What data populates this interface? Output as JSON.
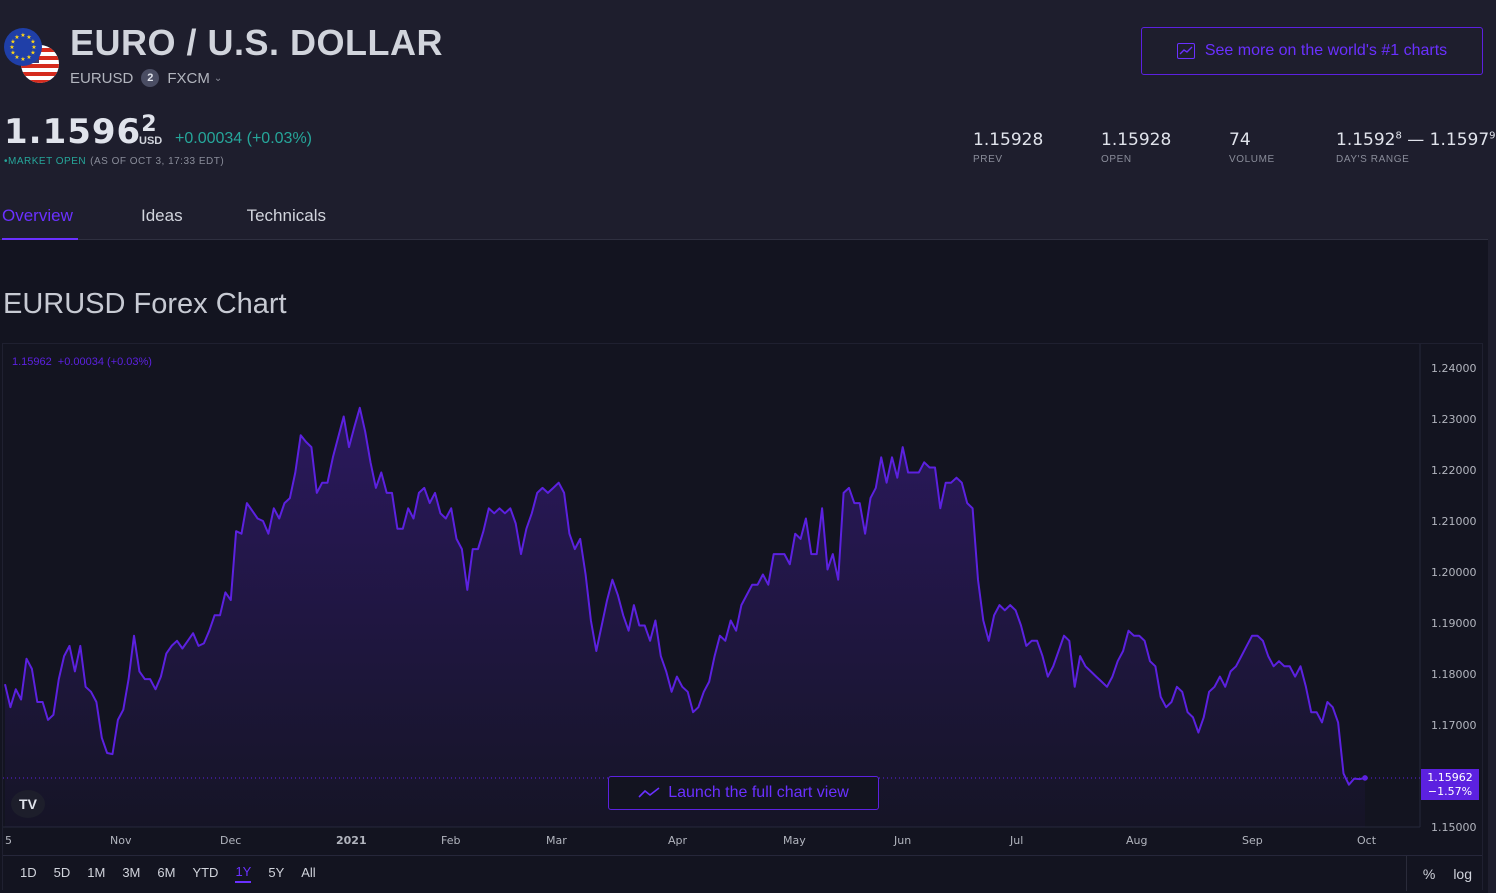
{
  "header": {
    "title": "EURO / U.S. DOLLAR",
    "symbol": "EURUSD",
    "provider_badge": "2",
    "provider": "FXCM",
    "cta_label": "See more on the world's #1 charts",
    "icons": [
      "eu-flag-icon",
      "us-flag-icon",
      "chevron-down-icon",
      "chart-icon"
    ]
  },
  "quote": {
    "price_main": "1.1596",
    "price_sup": "2",
    "currency": "USD",
    "change": "+0.00034 (+0.03%)",
    "status": "MARKET OPEN",
    "as_of": "(AS OF OCT 3, 17:33 EDT)"
  },
  "stats": [
    {
      "value": "1.15928",
      "label": "PREV"
    },
    {
      "value": "1.15928",
      "label": "OPEN"
    },
    {
      "value": "74",
      "label": "VOLUME"
    },
    {
      "value_low": "1.1592",
      "low_sup": "8",
      "sep": " — ",
      "value_high": "1.1597",
      "high_sup": "9",
      "label": "DAY'S RANGE"
    }
  ],
  "tabs": [
    {
      "label": "Overview",
      "active": true
    },
    {
      "label": "Ideas",
      "active": false
    },
    {
      "label": "Technicals",
      "active": false
    }
  ],
  "chart_section": {
    "heading": "EURUSD Forex Chart",
    "legend_price": "1.15962",
    "legend_change": "+0.00034 (+0.03%)",
    "launch_label": "Launch the full chart view",
    "tv_logo": "TV",
    "last_tag_price": "1.15962",
    "last_tag_change": "−1.57%",
    "accent": "#5c21e0"
  },
  "ranges": [
    {
      "label": "1D",
      "active": false
    },
    {
      "label": "5D",
      "active": false
    },
    {
      "label": "1M",
      "active": false
    },
    {
      "label": "3M",
      "active": false
    },
    {
      "label": "6M",
      "active": false
    },
    {
      "label": "YTD",
      "active": false
    },
    {
      "label": "1Y",
      "active": true
    },
    {
      "label": "5Y",
      "active": false
    },
    {
      "label": "All",
      "active": false
    }
  ],
  "scale_toggles": {
    "percent": "%",
    "log": "log"
  },
  "chart_data": {
    "type": "area",
    "ylim": [
      1.15,
      1.245
    ],
    "y_ticks": [
      1.24,
      1.23,
      1.22,
      1.21,
      1.2,
      1.19,
      1.18,
      1.17,
      1.16,
      1.15
    ],
    "y_tick_labels": [
      "1.24000",
      "1.23000",
      "1.22000",
      "1.21000",
      "1.20000",
      "1.19000",
      "1.18000",
      "1.17000",
      "",
      "1.15000"
    ],
    "x_tick_labels": [
      "5",
      "Nov",
      "Dec",
      "2021",
      "Feb",
      "Mar",
      "Apr",
      "May",
      "Jun",
      "Jul",
      "Aug",
      "Sep",
      "Oct"
    ],
    "x_tick_bold": [
      "2021"
    ],
    "values": [
      1.178,
      1.1735,
      1.177,
      1.175,
      1.183,
      1.181,
      1.1745,
      1.1745,
      1.171,
      1.172,
      1.179,
      1.1835,
      1.1855,
      1.1805,
      1.1855,
      1.1775,
      1.1765,
      1.1745,
      1.1675,
      1.1645,
      1.1643,
      1.171,
      1.173,
      1.179,
      1.1875,
      1.1805,
      1.179,
      1.179,
      1.177,
      1.1795,
      1.184,
      1.1855,
      1.1865,
      1.185,
      1.1865,
      1.188,
      1.1855,
      1.186,
      1.1885,
      1.1915,
      1.1915,
      1.196,
      1.1945,
      1.208,
      1.2075,
      1.2135,
      1.212,
      1.2105,
      1.21,
      1.2075,
      1.2125,
      1.2105,
      1.2135,
      1.2145,
      1.2195,
      1.2268,
      1.2255,
      1.2245,
      1.2155,
      1.2175,
      1.2175,
      1.2225,
      1.2265,
      1.2305,
      1.2245,
      1.2285,
      1.2322,
      1.2275,
      1.2215,
      1.2165,
      1.2195,
      1.2155,
      1.2155,
      1.2085,
      1.2085,
      1.2125,
      1.2105,
      1.2155,
      1.2165,
      1.2135,
      1.2155,
      1.2115,
      1.2105,
      1.2125,
      1.2065,
      1.2045,
      1.1965,
      1.2045,
      1.2045,
      1.208,
      1.2125,
      1.2115,
      1.2125,
      1.2115,
      1.2125,
      1.2095,
      1.2035,
      1.2085,
      1.2115,
      1.2155,
      1.2165,
      1.2155,
      1.2165,
      1.2175,
      1.2155,
      1.2075,
      1.2045,
      1.2065,
      1.1995,
      1.1905,
      1.1845,
      1.1895,
      1.1945,
      1.1985,
      1.1955,
      1.1915,
      1.1885,
      1.1935,
      1.1895,
      1.1895,
      1.1865,
      1.1905,
      1.1835,
      1.1805,
      1.1765,
      1.1795,
      1.1775,
      1.1765,
      1.1725,
      1.1735,
      1.1765,
      1.1785,
      1.1835,
      1.1875,
      1.1865,
      1.1905,
      1.1885,
      1.1935,
      1.1955,
      1.1975,
      1.1975,
      1.1995,
      1.1975,
      1.2035,
      1.2035,
      1.2035,
      1.2015,
      1.2075,
      1.2065,
      1.2105,
      1.2035,
      1.2035,
      1.2125,
      1.2005,
      1.2035,
      1.1985,
      1.2155,
      1.2165,
      1.2135,
      1.2135,
      1.2075,
      1.2145,
      1.2165,
      1.2225,
      1.2175,
      1.2225,
      1.2185,
      1.2245,
      1.2195,
      1.2195,
      1.2195,
      1.2215,
      1.2205,
      1.2205,
      1.2125,
      1.2175,
      1.2175,
      1.2185,
      1.2175,
      1.2135,
      1.2125,
      1.1985,
      1.1905,
      1.1865,
      1.1915,
      1.1935,
      1.1925,
      1.1935,
      1.1925,
      1.1895,
      1.1855,
      1.1865,
      1.1865,
      1.1835,
      1.1795,
      1.1815,
      1.1845,
      1.1875,
      1.1865,
      1.1775,
      1.1835,
      1.1815,
      1.1805,
      1.1795,
      1.1785,
      1.1775,
      1.1795,
      1.1825,
      1.1845,
      1.1885,
      1.1875,
      1.1875,
      1.1865,
      1.1825,
      1.1815,
      1.1755,
      1.1735,
      1.1745,
      1.1775,
      1.1765,
      1.1725,
      1.1715,
      1.1685,
      1.1715,
      1.1765,
      1.1775,
      1.1795,
      1.1775,
      1.1805,
      1.1815,
      1.1835,
      1.1855,
      1.1875,
      1.1875,
      1.1865,
      1.1835,
      1.1815,
      1.1825,
      1.1815,
      1.1815,
      1.1795,
      1.1815,
      1.1775,
      1.1725,
      1.1725,
      1.1705,
      1.1745,
      1.1735,
      1.1705,
      1.1605,
      1.1583,
      1.1595,
      1.1594,
      1.15962
    ],
    "last_value": 1.15962,
    "grid": false,
    "line_color": "#5c21e0"
  }
}
